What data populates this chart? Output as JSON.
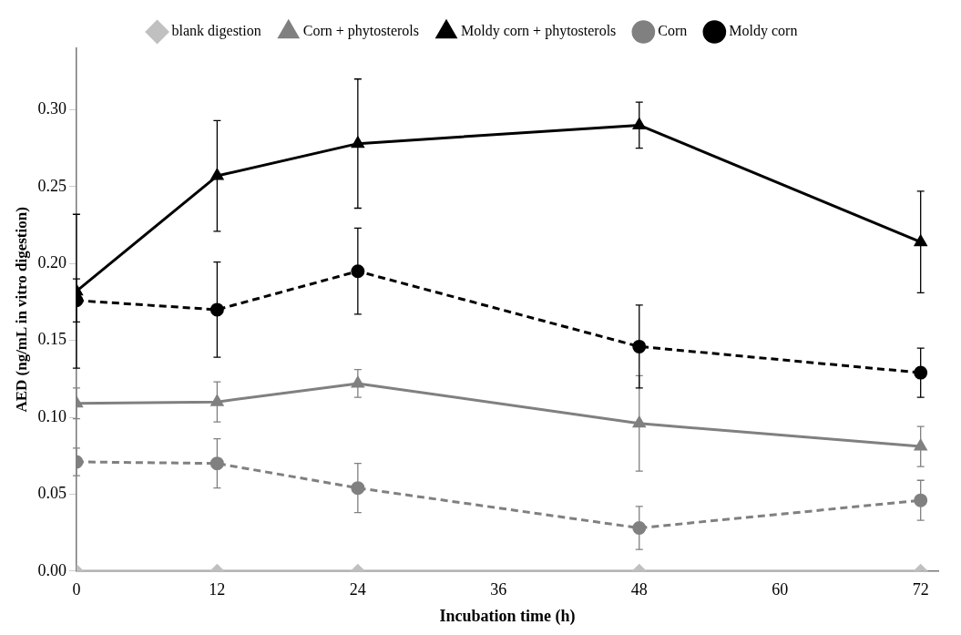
{
  "chart_data": {
    "type": "line",
    "xlabel": "Incubation time (h)",
    "ylabel": "AED (ng/mL in vitro digestion)",
    "x": [
      0,
      12,
      24,
      48,
      72
    ],
    "xlim": [
      0,
      73.5
    ],
    "xticks": [
      0,
      12,
      24,
      36,
      48,
      60,
      72
    ],
    "ylim": [
      0,
      0.34
    ],
    "yticks": [
      {
        "value": 0,
        "label": "0.00"
      },
      {
        "value": 0.05,
        "label": "0.05"
      },
      {
        "value": 0.1,
        "label": "0.10"
      },
      {
        "value": 0.15,
        "label": "0.15"
      },
      {
        "value": 0.2,
        "label": "0.20"
      },
      {
        "value": 0.25,
        "label": "0.25"
      },
      {
        "value": 0.3,
        "label": "0.30"
      }
    ],
    "grid": false,
    "legend": "top",
    "series": [
      {
        "name": "blank digestion",
        "color": "#c0c0c0",
        "marker": "diamond",
        "line_style": "solid",
        "values": [
          0,
          0,
          0,
          0,
          0
        ]
      },
      {
        "name": "Corn + phytosterols",
        "color": "#808080",
        "marker": "triangle",
        "line_style": "solid",
        "values": [
          0.109,
          0.11,
          0.122,
          0.096,
          0.081
        ],
        "errors": [
          0.01,
          0.013,
          0.009,
          0.031,
          0.013
        ]
      },
      {
        "name": "Moldy corn + phytosterols",
        "color": "#000000",
        "marker": "triangle",
        "line_style": "solid",
        "values": [
          0.182,
          0.257,
          0.278,
          0.29,
          0.214
        ],
        "errors": [
          0.05,
          0.036,
          0.042,
          0.015,
          0.033
        ]
      },
      {
        "name": "Corn",
        "color": "#808080",
        "marker": "circle",
        "line_style": "dashed",
        "values": [
          0.071,
          0.07,
          0.054,
          0.028,
          0.046
        ],
        "errors": [
          0.009,
          0.016,
          0.016,
          0.014,
          0.013
        ]
      },
      {
        "name": "Moldy corn",
        "color": "#000000",
        "marker": "circle",
        "line_style": "dashed",
        "values": [
          0.176,
          0.17,
          0.195,
          0.146,
          0.129
        ],
        "errors": [
          0.014,
          0.031,
          0.028,
          0.027,
          0.016
        ]
      }
    ]
  }
}
